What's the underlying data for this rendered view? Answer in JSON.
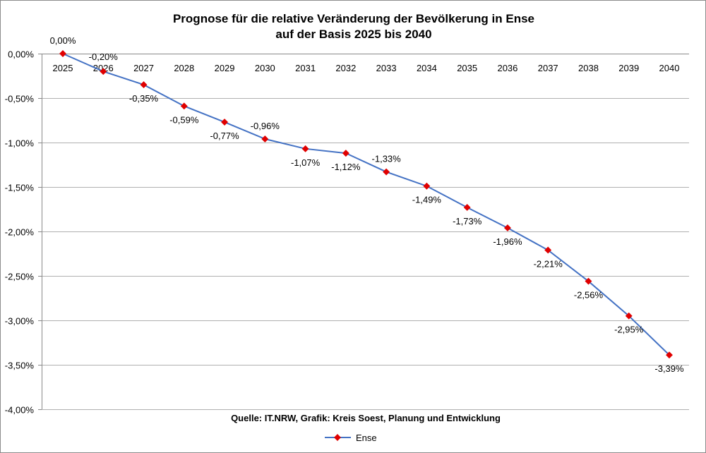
{
  "chart_data": {
    "type": "line",
    "title": "Prognose für die relative Veränderung der Bevölkerung in Ense",
    "subtitle": "auf der Basis 2025 bis 2040",
    "xlabel": "",
    "ylabel": "",
    "categories": [
      "2025",
      "2026",
      "2027",
      "2028",
      "2029",
      "2030",
      "2031",
      "2032",
      "2033",
      "2034",
      "2035",
      "2036",
      "2037",
      "2038",
      "2039",
      "2040"
    ],
    "series": [
      {
        "name": "Ense",
        "values": [
          0.0,
          -0.2,
          -0.35,
          -0.59,
          -0.77,
          -0.96,
          -1.07,
          -1.12,
          -1.33,
          -1.49,
          -1.73,
          -1.96,
          -2.21,
          -2.56,
          -2.95,
          -3.39
        ],
        "data_labels": [
          "0,00%",
          "-0,20%",
          "-0,35%",
          "-0,59%",
          "-0,77%",
          "-0,96%",
          "-1,07%",
          "-1,12%",
          "-1,33%",
          "-1,49%",
          "-1,73%",
          "-1,96%",
          "-2,21%",
          "-2,56%",
          "-2,95%",
          "-3,39%"
        ],
        "line_color": "#4472C4",
        "marker_color": "#E00000",
        "marker": "diamond"
      }
    ],
    "ylim": [
      -4.0,
      0.0
    ],
    "yticks": [
      0,
      -0.5,
      -1,
      -1.5,
      -2,
      -2.5,
      -3,
      -3.5,
      -4
    ],
    "ytick_labels": [
      "0,00%",
      "-0,50%",
      "-1,00%",
      "-1,50%",
      "-2,00%",
      "-2,50%",
      "-3,00%",
      "-3,50%",
      "-4,00%"
    ],
    "grid": true,
    "legend": "bottom",
    "source": "Quelle: IT.NRW, Grafik: Kreis Soest, Planung und Entwicklung"
  }
}
